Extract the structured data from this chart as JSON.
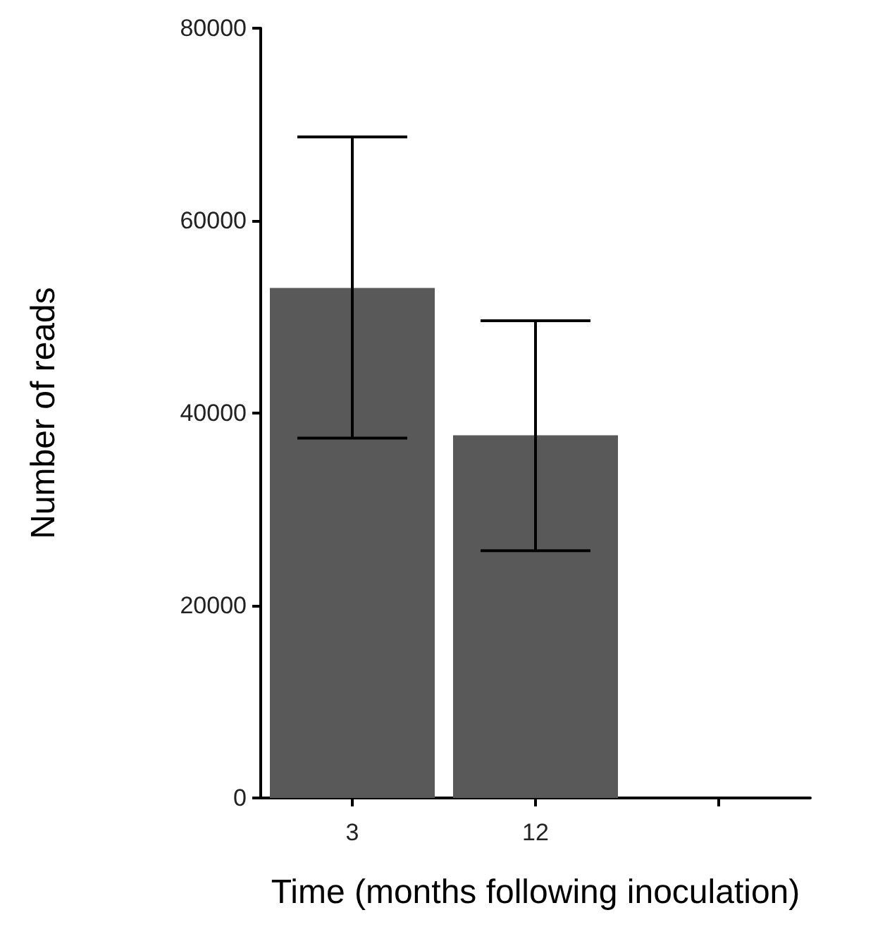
{
  "chart_data": {
    "type": "bar",
    "xlabel": "Time (months following inoculation)",
    "ylabel": "Number of reads",
    "categories": [
      "3",
      "12",
      null
    ],
    "values": [
      53000,
      37700,
      null
    ],
    "errors": [
      [
        37400,
        68700
      ],
      [
        25700,
        49600
      ],
      null
    ],
    "color": "#595959",
    "ylim": [
      0,
      80000
    ],
    "yticks": [
      0,
      20000,
      40000,
      60000,
      80000
    ],
    "grid": false
  }
}
